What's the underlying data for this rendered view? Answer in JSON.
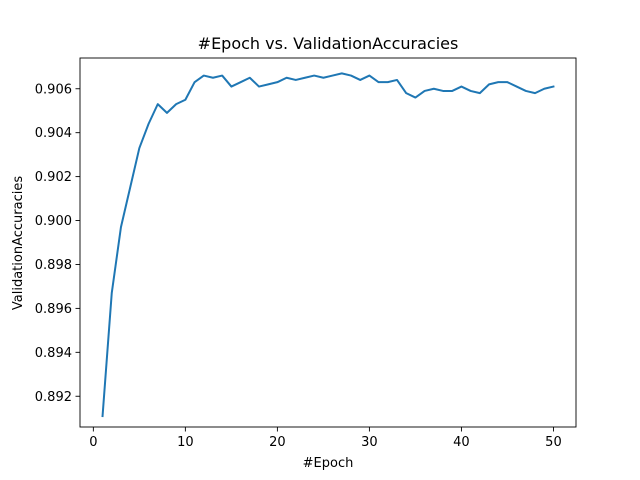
{
  "chart_data": {
    "type": "line",
    "title": "#Epoch vs. ValidationAccuracies",
    "xlabel": "#Epoch",
    "ylabel": "ValidationAccuracies",
    "xlim": [
      -1.45,
      52.45
    ],
    "ylim": [
      0.8906,
      0.9074
    ],
    "xticks": [
      0,
      10,
      20,
      30,
      40,
      50
    ],
    "xtick_labels": [
      "0",
      "10",
      "20",
      "30",
      "40",
      "50"
    ],
    "yticks": [
      0.892,
      0.894,
      0.896,
      0.898,
      0.9,
      0.902,
      0.904,
      0.906
    ],
    "ytick_labels": [
      "0.892",
      "0.894",
      "0.896",
      "0.898",
      "0.900",
      "0.902",
      "0.904",
      "0.906"
    ],
    "grid": false,
    "series": [
      {
        "color": "#1f77b4",
        "x": [
          1,
          2,
          3,
          4,
          5,
          6,
          7,
          8,
          9,
          10,
          11,
          12,
          13,
          14,
          15,
          16,
          17,
          18,
          19,
          20,
          21,
          22,
          23,
          24,
          25,
          26,
          27,
          28,
          29,
          30,
          31,
          32,
          33,
          34,
          35,
          36,
          37,
          38,
          39,
          40,
          41,
          42,
          43,
          44,
          45,
          46,
          47,
          48,
          49,
          50
        ],
        "values": [
          0.8911,
          0.8967,
          0.8997,
          0.9015,
          0.9033,
          0.9044,
          0.9053,
          0.9049,
          0.9053,
          0.9055,
          0.9063,
          0.9066,
          0.9065,
          0.9066,
          0.9061,
          0.9063,
          0.9065,
          0.9061,
          0.9062,
          0.9063,
          0.9065,
          0.9064,
          0.9065,
          0.9066,
          0.9065,
          0.9066,
          0.9067,
          0.9066,
          0.9064,
          0.9066,
          0.9063,
          0.9063,
          0.9064,
          0.9058,
          0.9056,
          0.9059,
          0.906,
          0.9059,
          0.9059,
          0.9061,
          0.9059,
          0.9058,
          0.9062,
          0.9063,
          0.9063,
          0.9061,
          0.9059,
          0.9058,
          0.906,
          0.9061
        ]
      }
    ]
  }
}
